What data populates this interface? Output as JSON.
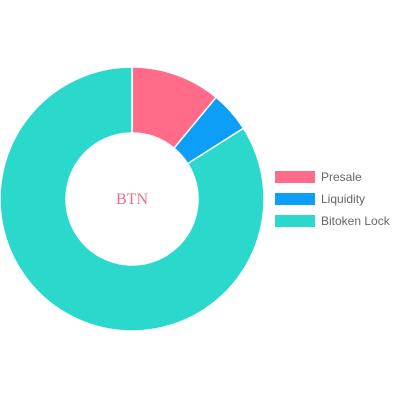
{
  "chart_data": {
    "type": "doughnut",
    "center_text": "BTN",
    "center_text_color": "#e8718a",
    "legend_position": "right",
    "series": [
      {
        "name": "Presale",
        "value": 11,
        "color": "#ff6b88"
      },
      {
        "name": "Liquidity",
        "value": 5,
        "color": "#0d9ef7"
      },
      {
        "name": "Bitoken Lock",
        "value": 84,
        "color": "#2ad8cc"
      }
    ]
  }
}
